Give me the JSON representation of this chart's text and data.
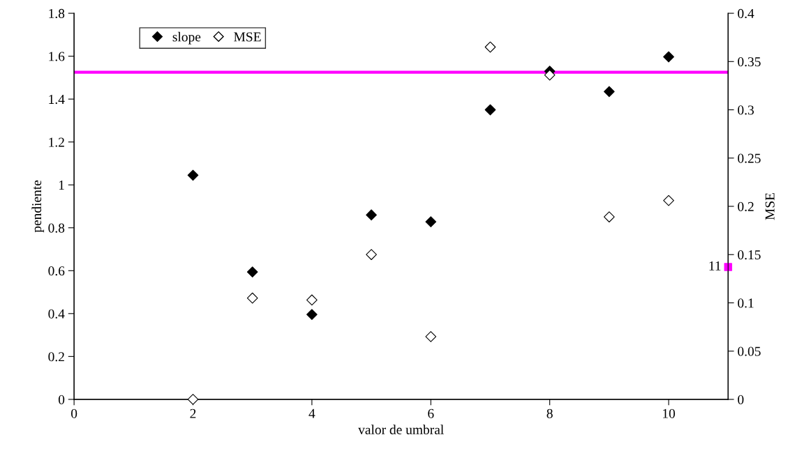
{
  "chart_data": {
    "type": "scatter",
    "xlabel": "valor de umbral",
    "ylabel": "pendiente",
    "y2label": "MSE",
    "xlim": [
      0,
      11
    ],
    "xticks": [
      0,
      2,
      4,
      6,
      8,
      10
    ],
    "ylim": [
      0,
      1.8
    ],
    "yticks": [
      0,
      0.2,
      0.4,
      0.6,
      0.8,
      1,
      1.2,
      1.4,
      1.6,
      1.8
    ],
    "y2lim": [
      0,
      0.4
    ],
    "y2ticks": [
      0,
      0.05,
      0.1,
      0.15,
      0.2,
      0.25,
      0.3,
      0.35,
      0.4
    ],
    "annotations": [
      {
        "text": "11",
        "x": 11,
        "y": 0.617
      }
    ],
    "x": [
      2,
      3,
      4,
      5,
      6,
      7,
      8,
      9,
      10
    ],
    "series": [
      {
        "name": "slope",
        "color": "#000000",
        "marker": "diamond",
        "values": [
          1.045,
          0.594,
          0.396,
          0.86,
          0.828,
          1.35,
          1.53,
          1.435,
          1.597
        ]
      },
      {
        "name": "MSE",
        "color": "#ffffff",
        "marker": "diamond",
        "axis": "y2",
        "values": [
          0,
          0.105,
          0.103,
          0.15,
          0.065,
          0.365,
          0.336,
          0.189,
          0.206
        ]
      },
      {
        "color": "#ff00ff",
        "marker": "square",
        "x": [
          11
        ],
        "values": [
          0.617
        ]
      }
    ],
    "ref_lines": [
      {
        "axis": "y",
        "value": 1.525,
        "color": "#ff00ff",
        "line_style": "solid"
      }
    ],
    "legend": "top left",
    "grid": false
  }
}
